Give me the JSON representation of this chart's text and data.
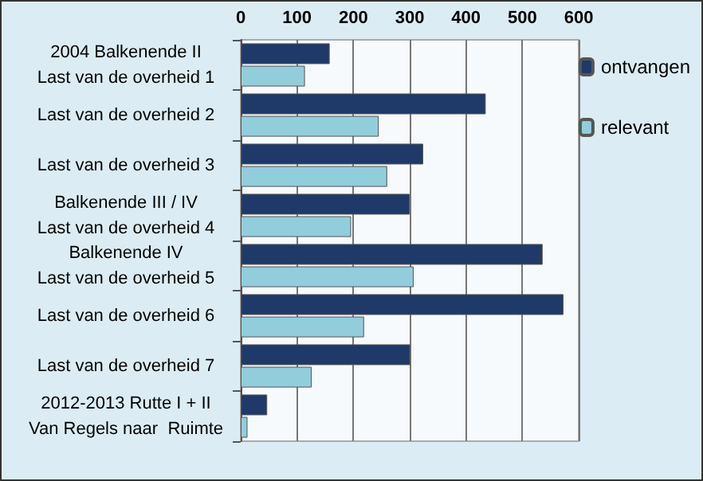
{
  "chart_data": {
    "type": "bar",
    "orientation": "horizontal",
    "categories": [
      "2004 Balkenende II\nLast van de overheid 1",
      "Last van de overheid 2",
      "Last van de overheid 3",
      "Balkenende III / IV\nLast van de overheid 4",
      "Balkenende IV\nLast van de overheid 5",
      "Last van de overheid 6",
      "Last van de overheid 7",
      "2012-2013 Rutte I + II\nVan Regels naar  Ruimte"
    ],
    "series": [
      {
        "name": "ontvangen",
        "color": "#1f3a68",
        "values": [
          158,
          435,
          324,
          300,
          536,
          573,
          301,
          47
        ]
      },
      {
        "name": "relevant",
        "color": "#92cddc",
        "values": [
          114,
          245,
          260,
          196,
          307,
          219,
          126,
          12
        ]
      }
    ],
    "xlim": [
      0,
      600
    ],
    "xticks": [
      0,
      100,
      200,
      300,
      400,
      500,
      600
    ],
    "grid": "x",
    "legend": "top right"
  }
}
